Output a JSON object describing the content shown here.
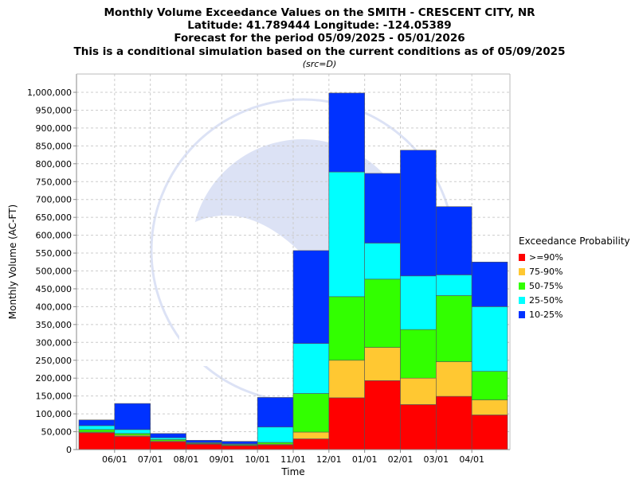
{
  "titles": {
    "line1": "Monthly Volume Exceedance Values on the SMITH - CRESCENT CITY, NR",
    "line2": "Latitude: 41.789444 Longitude: -124.05389",
    "line3": "Forecast for the period 05/09/2025 - 05/01/2026",
    "line4": "This is a conditional simulation based on the current conditions as of 05/09/2025",
    "source": "(src=D)"
  },
  "legend": {
    "title": "Exceedance Probability",
    "items": [
      {
        "label": ">=90%",
        "color": "#ff0000"
      },
      {
        "label": "75-90%",
        "color": "#ffc832"
      },
      {
        "label": "50-75%",
        "color": "#32ff00"
      },
      {
        "label": "25-50%",
        "color": "#00ffff"
      },
      {
        "label": "10-25%",
        "color": "#0032ff"
      }
    ]
  },
  "chart_data": {
    "type": "bar",
    "stacked": true,
    "xlabel": "Time",
    "ylabel": "Monthly Volume (AC-FT)",
    "ylim": [
      0,
      1000000
    ],
    "yticks": [
      0,
      50000,
      100000,
      150000,
      200000,
      250000,
      300000,
      350000,
      400000,
      450000,
      500000,
      550000,
      600000,
      650000,
      700000,
      750000,
      800000,
      850000,
      900000,
      950000,
      1000000
    ],
    "ytick_labels": [
      "0",
      "50,000",
      "100,000",
      "150,000",
      "200,000",
      "250,000",
      "300,000",
      "350,000",
      "400,000",
      "450,000",
      "500,000",
      "550,000",
      "600,000",
      "650,000",
      "700,000",
      "750,000",
      "800,000",
      "850,000",
      "900,000",
      "950,000",
      "1,000,000"
    ],
    "xtick_labels": [
      "06/01",
      "07/01",
      "08/01",
      "09/01",
      "10/01",
      "11/01",
      "12/01",
      "01/01",
      "02/01",
      "03/01",
      "04/01"
    ],
    "grid": true,
    "legend_position": "right",
    "bars": [
      {
        "levels": [
          47000,
          49000,
          56000,
          67000,
          83000
        ]
      },
      {
        "levels": [
          37000,
          40000,
          45000,
          56000,
          129000
        ]
      },
      {
        "levels": [
          22000,
          24000,
          28000,
          33000,
          45000
        ]
      },
      {
        "levels": [
          15000,
          16000,
          18000,
          20000,
          26000
        ]
      },
      {
        "levels": [
          11000,
          12000,
          14000,
          16000,
          23000
        ]
      },
      {
        "levels": [
          13000,
          15000,
          20000,
          63000,
          146000
        ]
      },
      {
        "levels": [
          30000,
          49000,
          157000,
          297000,
          557000
        ]
      },
      {
        "levels": [
          145000,
          250000,
          428000,
          777000,
          998000
        ]
      },
      {
        "levels": [
          193000,
          286000,
          477000,
          578000,
          773000
        ]
      },
      {
        "levels": [
          126000,
          200000,
          336000,
          486000,
          838000
        ]
      },
      {
        "levels": [
          149000,
          246000,
          431000,
          489000,
          680000
        ]
      },
      {
        "levels": [
          97000,
          139000,
          219000,
          400000,
          525000
        ]
      }
    ]
  }
}
